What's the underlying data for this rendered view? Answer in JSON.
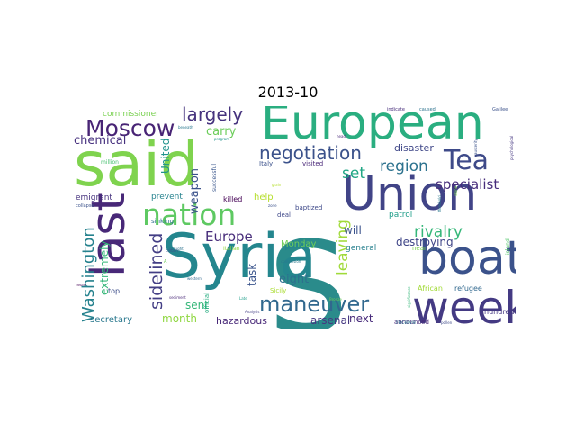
{
  "title": "2013-10",
  "words": [
    {
      "text": "S",
      "color": "#2a8b8b"
    },
    {
      "text": "Syria",
      "color": "#24868e"
    },
    {
      "text": "said",
      "color": "#7fd34e"
    },
    {
      "text": "European",
      "color": "#2aae80"
    },
    {
      "text": "Union",
      "color": "#414487"
    },
    {
      "text": "last",
      "color": "#482878"
    },
    {
      "text": "boat",
      "color": "#3b528b"
    },
    {
      "text": "week",
      "color": "#443a83"
    },
    {
      "text": "nation",
      "color": "#5ec962"
    },
    {
      "text": "Tea",
      "color": "#3e4a89"
    },
    {
      "text": "Moscow",
      "color": "#482475"
    },
    {
      "text": "maneuver",
      "color": "#31688e"
    },
    {
      "text": "negotiation",
      "color": "#3b528b"
    },
    {
      "text": "largely",
      "color": "#46337e"
    },
    {
      "text": "sidelined",
      "color": "#433e85"
    },
    {
      "text": "Washington",
      "color": "#26828e"
    },
    {
      "text": "region",
      "color": "#2c728e"
    },
    {
      "text": "rivalry",
      "color": "#35b779"
    },
    {
      "text": "leaving",
      "color": "#a0da39"
    },
    {
      "text": "specialist",
      "color": "#472d7b"
    },
    {
      "text": "set",
      "color": "#21a685"
    },
    {
      "text": "Europe",
      "color": "#472c7a"
    },
    {
      "text": "chemical",
      "color": "#46307e"
    },
    {
      "text": "weapon",
      "color": "#3b528b"
    },
    {
      "text": "carry",
      "color": "#6ccd5a"
    },
    {
      "text": "United",
      "color": "#20928c"
    },
    {
      "text": "extremely",
      "color": "#35b779"
    },
    {
      "text": "destroying",
      "color": "#404688"
    },
    {
      "text": "hazardous",
      "color": "#482878"
    },
    {
      "text": "arsenal",
      "color": "#453781"
    },
    {
      "text": "eight",
      "color": "#2d708e"
    },
    {
      "text": "task",
      "color": "#3a548c"
    },
    {
      "text": "sent",
      "color": "#35b779"
    },
    {
      "text": "month",
      "color": "#90d743"
    },
    {
      "text": "next",
      "color": "#472a7a"
    },
    {
      "text": "secretary",
      "color": "#2a788e"
    },
    {
      "text": "will",
      "color": "#3b528b"
    },
    {
      "text": "general",
      "color": "#27808e"
    },
    {
      "text": "disaster",
      "color": "#3f4788"
    },
    {
      "text": "patrol",
      "color": "#1f9e89"
    },
    {
      "text": "Monday",
      "color": "#6ece58"
    },
    {
      "text": "help",
      "color": "#b5de2b"
    },
    {
      "text": "killed",
      "color": "#440154"
    },
    {
      "text": "prevent",
      "color": "#26828e"
    },
    {
      "text": "emigrant",
      "color": "#46327e"
    },
    {
      "text": "commissioner",
      "color": "#7ad151"
    },
    {
      "text": "hundred",
      "color": "#453882"
    },
    {
      "text": "African",
      "color": "#a2da37"
    },
    {
      "text": "refugee",
      "color": "#31688e"
    },
    {
      "text": "announced",
      "color": "#482878"
    },
    {
      "text": "receive",
      "color": "#2c728e"
    },
    {
      "text": "baptized",
      "color": "#3e4989"
    },
    {
      "text": "sinking",
      "color": "#2d708e"
    },
    {
      "text": "Sicily",
      "color": "#aadc32"
    },
    {
      "text": "Italian",
      "color": "#95d840"
    },
    {
      "text": "Italy",
      "color": "#3b518b"
    },
    {
      "text": "visited",
      "color": "#482677"
    },
    {
      "text": "island",
      "color": "#52c569"
    },
    {
      "text": "top",
      "color": "#3d4e8a"
    },
    {
      "text": "official",
      "color": "#27ad81"
    },
    {
      "text": "deal",
      "color": "#3f4889"
    },
    {
      "text": "successful",
      "color": "#39568c"
    },
    {
      "text": "near",
      "color": "#7cd250"
    },
    {
      "text": "collapse",
      "color": "#3b528b"
    },
    {
      "text": "million",
      "color": "#46c06f"
    },
    {
      "text": "indicate",
      "color": "#472d7b"
    },
    {
      "text": "caused",
      "color": "#2c728e"
    },
    {
      "text": "Galilee",
      "color": "#3b528b"
    },
    {
      "text": "beneath",
      "color": "#2a788e"
    },
    {
      "text": "program",
      "color": "#20928c"
    },
    {
      "text": "psychological",
      "color": "#453781"
    },
    {
      "text": "head",
      "color": "#482878"
    },
    {
      "text": "austerity",
      "color": "#3b528b"
    },
    {
      "text": "threshold",
      "color": "#2a788e"
    },
    {
      "text": "significance",
      "color": "#35b779"
    },
    {
      "text": "pollen",
      "color": "#3e4a89"
    },
    {
      "text": "sediment",
      "color": "#482878"
    },
    {
      "text": "Late",
      "color": "#1f9e89"
    },
    {
      "text": "Analysis",
      "color": "#433e85"
    },
    {
      "text": "Bronze",
      "color": "#6ece58"
    },
    {
      "text": "completion",
      "color": "#2a788e"
    },
    {
      "text": "zone",
      "color": "#3b528b"
    },
    {
      "text": "drought",
      "color": "#2c728e"
    },
    {
      "text": "western",
      "color": "#31688e"
    },
    {
      "text": "neuro",
      "color": "#440154"
    },
    {
      "text": "grain",
      "color": "#b5de2b"
    },
    {
      "text": "stone",
      "color": "#7ad151"
    },
    {
      "text": "A",
      "color": "#6ece58"
    },
    {
      "text": "carbon",
      "color": "#3b528b"
    }
  ]
}
